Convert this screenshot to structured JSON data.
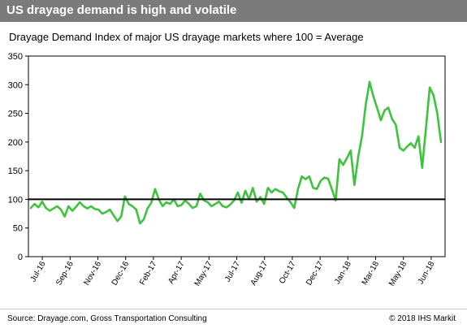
{
  "header": {
    "title": "US drayage demand is high and volatile"
  },
  "chart_data": {
    "type": "line",
    "title": "Drayage Demand Index of major US drayage markets where 100 = Average",
    "xlabel": "",
    "ylabel": "",
    "ylim": [
      0,
      350
    ],
    "yticks": [
      0,
      50,
      100,
      150,
      200,
      250,
      300,
      350
    ],
    "x_tick_labels": [
      "Jul-16",
      "Sep-16",
      "Nov-16",
      "Dec-16",
      "Feb-17",
      "Apr-17",
      "May-17",
      "Jul-17",
      "Aug-17",
      "Oct-17",
      "Dec-17",
      "Jan-18",
      "Mar-18",
      "May-18",
      "Jun-18"
    ],
    "grid": false,
    "reference_line": {
      "value": 100,
      "color": "#000000"
    },
    "series": [
      {
        "color": "#3cc43c",
        "values": [
          [
            0,
            85
          ],
          [
            1,
            92
          ],
          [
            2,
            86
          ],
          [
            3,
            96
          ],
          [
            4,
            85
          ],
          [
            5,
            80
          ],
          [
            6,
            84
          ],
          [
            7,
            88
          ],
          [
            8,
            82
          ],
          [
            9,
            70
          ],
          [
            10,
            88
          ],
          [
            11,
            80
          ],
          [
            12,
            87
          ],
          [
            13,
            95
          ],
          [
            14,
            88
          ],
          [
            15,
            84
          ],
          [
            16,
            88
          ],
          [
            17,
            83
          ],
          [
            18,
            82
          ],
          [
            19,
            75
          ],
          [
            20,
            78
          ],
          [
            21,
            82
          ],
          [
            22,
            72
          ],
          [
            23,
            62
          ],
          [
            24,
            70
          ],
          [
            25,
            105
          ],
          [
            26,
            92
          ],
          [
            27,
            88
          ],
          [
            28,
            82
          ],
          [
            29,
            58
          ],
          [
            30,
            65
          ],
          [
            31,
            84
          ],
          [
            32,
            94
          ],
          [
            33,
            118
          ],
          [
            34,
            100
          ],
          [
            35,
            88
          ],
          [
            36,
            95
          ],
          [
            37,
            92
          ],
          [
            38,
            100
          ],
          [
            39,
            88
          ],
          [
            40,
            90
          ],
          [
            41,
            98
          ],
          [
            42,
            92
          ],
          [
            43,
            85
          ],
          [
            44,
            88
          ],
          [
            45,
            110
          ],
          [
            46,
            98
          ],
          [
            47,
            95
          ],
          [
            48,
            88
          ],
          [
            49,
            92
          ],
          [
            50,
            96
          ],
          [
            51,
            88
          ],
          [
            52,
            86
          ],
          [
            53,
            91
          ],
          [
            54,
            98
          ],
          [
            55,
            112
          ],
          [
            56,
            94
          ],
          [
            57,
            115
          ],
          [
            58,
            100
          ],
          [
            59,
            120
          ],
          [
            60,
            96
          ],
          [
            61,
            104
          ],
          [
            62,
            92
          ],
          [
            63,
            120
          ],
          [
            64,
            112
          ],
          [
            65,
            118
          ],
          [
            66,
            114
          ],
          [
            67,
            112
          ],
          [
            68,
            103
          ],
          [
            69,
            95
          ],
          [
            70,
            85
          ],
          [
            71,
            118
          ],
          [
            72,
            140
          ],
          [
            73,
            135
          ],
          [
            74,
            140
          ],
          [
            75,
            120
          ],
          [
            76,
            118
          ],
          [
            77,
            132
          ],
          [
            78,
            138
          ],
          [
            79,
            136
          ],
          [
            80,
            118
          ],
          [
            81,
            98
          ],
          [
            82,
            170
          ],
          [
            83,
            160
          ],
          [
            84,
            172
          ],
          [
            85,
            185
          ],
          [
            86,
            125
          ],
          [
            87,
            175
          ],
          [
            88,
            210
          ],
          [
            89,
            265
          ],
          [
            90,
            305
          ],
          [
            91,
            280
          ],
          [
            92,
            260
          ],
          [
            93,
            238
          ],
          [
            94,
            255
          ],
          [
            95,
            260
          ],
          [
            96,
            240
          ],
          [
            97,
            230
          ],
          [
            98,
            190
          ],
          [
            99,
            185
          ],
          [
            100,
            192
          ],
          [
            101,
            198
          ],
          [
            102,
            190
          ],
          [
            103,
            210
          ],
          [
            104,
            155
          ],
          [
            105,
            225
          ],
          [
            106,
            295
          ],
          [
            107,
            282
          ],
          [
            108,
            250
          ],
          [
            109,
            200
          ]
        ],
        "x_domain": [
          0,
          109
        ]
      }
    ]
  },
  "footer": {
    "source": "Source: Drayage.com, Gross Transportation Consulting",
    "copyright": "© 2018 IHS Markit"
  }
}
